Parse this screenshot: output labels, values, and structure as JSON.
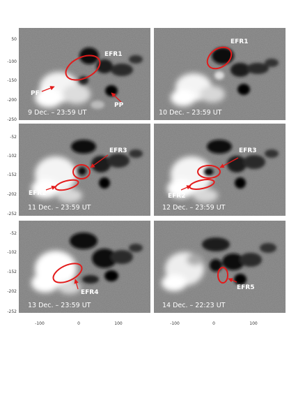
{
  "panels": [
    {
      "caption": "9 Dec. – 23:59 UT",
      "labels": [
        "EFR1",
        "PF",
        "PP"
      ]
    },
    {
      "caption": "10 Dec. – 23:59 UT",
      "labels": [
        "EFR1"
      ]
    },
    {
      "caption": "11 Dec. – 23:59 UT",
      "labels": [
        "EFR3",
        "EFR2"
      ]
    },
    {
      "caption": "12 Dec. – 23:59 UT",
      "labels": [
        "EFR3",
        "EFR2"
      ]
    },
    {
      "caption": "13 Dec. – 23:59 UT",
      "labels": [
        "EFR4"
      ]
    },
    {
      "caption": "14 Dec. – 22:23 UT",
      "labels": [
        "EFR5"
      ]
    }
  ],
  "y_ticks": {
    "row1": [
      "50",
      "-100",
      "-150",
      "-200",
      "-250"
    ],
    "row2": [
      "-52",
      "-102",
      "-152",
      "-202",
      "-252"
    ],
    "row3": [
      "-52",
      "-102",
      "-152",
      "-202",
      "-252"
    ]
  },
  "x_ticks": {
    "left": [
      "-100",
      "0",
      "100"
    ],
    "right": [
      "-100",
      "0",
      "100"
    ]
  },
  "colors": {
    "background": "#7e7e7e",
    "annotation": "#e31b1b",
    "positive_flux": "#ffffff",
    "negative_flux": "#0a0a0a"
  }
}
